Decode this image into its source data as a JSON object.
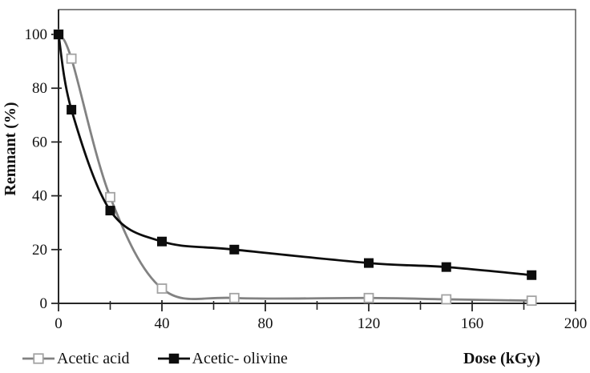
{
  "chart_data": {
    "type": "line",
    "title": "",
    "xlabel": "Dose (kGy)",
    "ylabel": "Remnant (%)",
    "x": [
      0,
      5,
      20,
      40,
      68,
      120,
      150,
      183
    ],
    "series": [
      {
        "name": "Acetic acid",
        "values": [
          100,
          91,
          39.5,
          5.5,
          2,
          2,
          1.5,
          1
        ],
        "line_color": "#828282",
        "marker": "open-square",
        "marker_fill": "#ffffff",
        "marker_stroke": "#a3a3a3"
      },
      {
        "name": "Acetic- olivine",
        "values": [
          100,
          72,
          34.5,
          23,
          20,
          15,
          13.5,
          10.5
        ],
        "line_color": "#0d0d0d",
        "marker": "filled-square",
        "marker_fill": "#0d0d0d",
        "marker_stroke": "#0d0d0d"
      }
    ],
    "xlim": [
      0,
      200
    ],
    "ylim": [
      0,
      100
    ],
    "x_major_ticks": [
      0,
      40,
      80,
      120,
      160,
      200
    ],
    "x_tick_labels": [
      "0",
      "40",
      "80",
      "120",
      "160",
      "200"
    ],
    "x_minor_ticks": [
      20,
      60,
      100,
      140,
      180
    ],
    "y_ticks": [
      0,
      20,
      40,
      60,
      80,
      100
    ],
    "y_tick_labels": [
      "0",
      "20",
      "40",
      "60",
      "80",
      "100"
    ],
    "grid": false,
    "smoothed_lines": true,
    "legend_position": "bottom-left",
    "axis_color": "#262626",
    "border_color": "#4d4d4d",
    "text_color": "#111111"
  }
}
